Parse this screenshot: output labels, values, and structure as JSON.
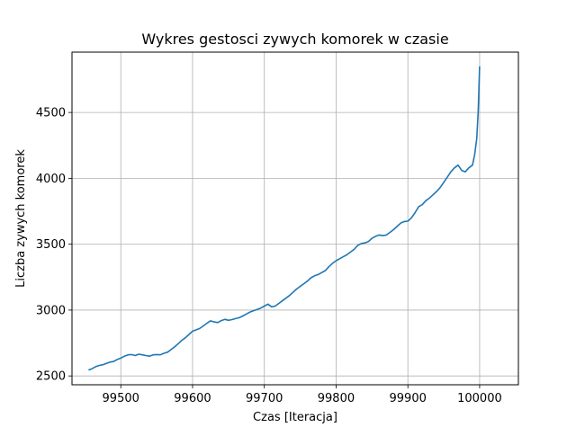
{
  "chart_data": {
    "type": "line",
    "title": "Wykres gestosci zywych komorek w czasie",
    "xlabel": "Czas [Iteracja]",
    "ylabel": "Liczba zywych komorek",
    "xlim": [
      99432,
      100054
    ],
    "ylim": [
      2433,
      4958
    ],
    "xticks": [
      99500,
      99600,
      99700,
      99800,
      99900,
      100000
    ],
    "yticks": [
      2500,
      3000,
      3500,
      4000,
      4500
    ],
    "grid": true,
    "line_color": "#1f77b4",
    "series": [
      {
        "x": [
          99455,
          99460,
          99465,
          99470,
          99475,
          99480,
          99485,
          99490,
          99495,
          99500,
          99505,
          99510,
          99515,
          99520,
          99525,
          99530,
          99535,
          99540,
          99545,
          99550,
          99555,
          99560,
          99565,
          99570,
          99575,
          99580,
          99585,
          99590,
          99595,
          99600,
          99605,
          99610,
          99615,
          99620,
          99625,
          99630,
          99635,
          99640,
          99645,
          99650,
          99655,
          99660,
          99665,
          99670,
          99675,
          99680,
          99685,
          99690,
          99695,
          99700,
          99705,
          99710,
          99715,
          99720,
          99725,
          99730,
          99735,
          99740,
          99745,
          99750,
          99755,
          99760,
          99765,
          99770,
          99775,
          99780,
          99785,
          99790,
          99795,
          99800,
          99805,
          99810,
          99815,
          99820,
          99825,
          99830,
          99835,
          99840,
          99845,
          99850,
          99855,
          99860,
          99865,
          99870,
          99875,
          99880,
          99885,
          99890,
          99895,
          99900,
          99905,
          99910,
          99915,
          99920,
          99925,
          99930,
          99935,
          99940,
          99945,
          99950,
          99955,
          99960,
          99965,
          99970,
          99975,
          99980,
          99985,
          99990,
          99993,
          99996,
          99998,
          100000
        ],
        "y": [
          2545,
          2555,
          2570,
          2580,
          2585,
          2595,
          2605,
          2610,
          2625,
          2635,
          2650,
          2660,
          2662,
          2655,
          2665,
          2660,
          2655,
          2650,
          2660,
          2662,
          2660,
          2672,
          2680,
          2700,
          2720,
          2745,
          2770,
          2790,
          2815,
          2840,
          2850,
          2860,
          2880,
          2900,
          2918,
          2910,
          2905,
          2920,
          2930,
          2922,
          2928,
          2935,
          2942,
          2955,
          2970,
          2985,
          2995,
          3005,
          3015,
          3030,
          3045,
          3025,
          3030,
          3050,
          3070,
          3090,
          3110,
          3135,
          3160,
          3180,
          3200,
          3220,
          3245,
          3260,
          3270,
          3285,
          3300,
          3330,
          3355,
          3375,
          3390,
          3405,
          3420,
          3440,
          3460,
          3490,
          3505,
          3510,
          3520,
          3545,
          3560,
          3570,
          3565,
          3570,
          3590,
          3610,
          3635,
          3660,
          3672,
          3675,
          3700,
          3740,
          3785,
          3800,
          3830,
          3850,
          3875,
          3900,
          3930,
          3970,
          4010,
          4050,
          4080,
          4100,
          4060,
          4050,
          4080,
          4100,
          4180,
          4300,
          4500,
          4850
        ]
      }
    ]
  }
}
